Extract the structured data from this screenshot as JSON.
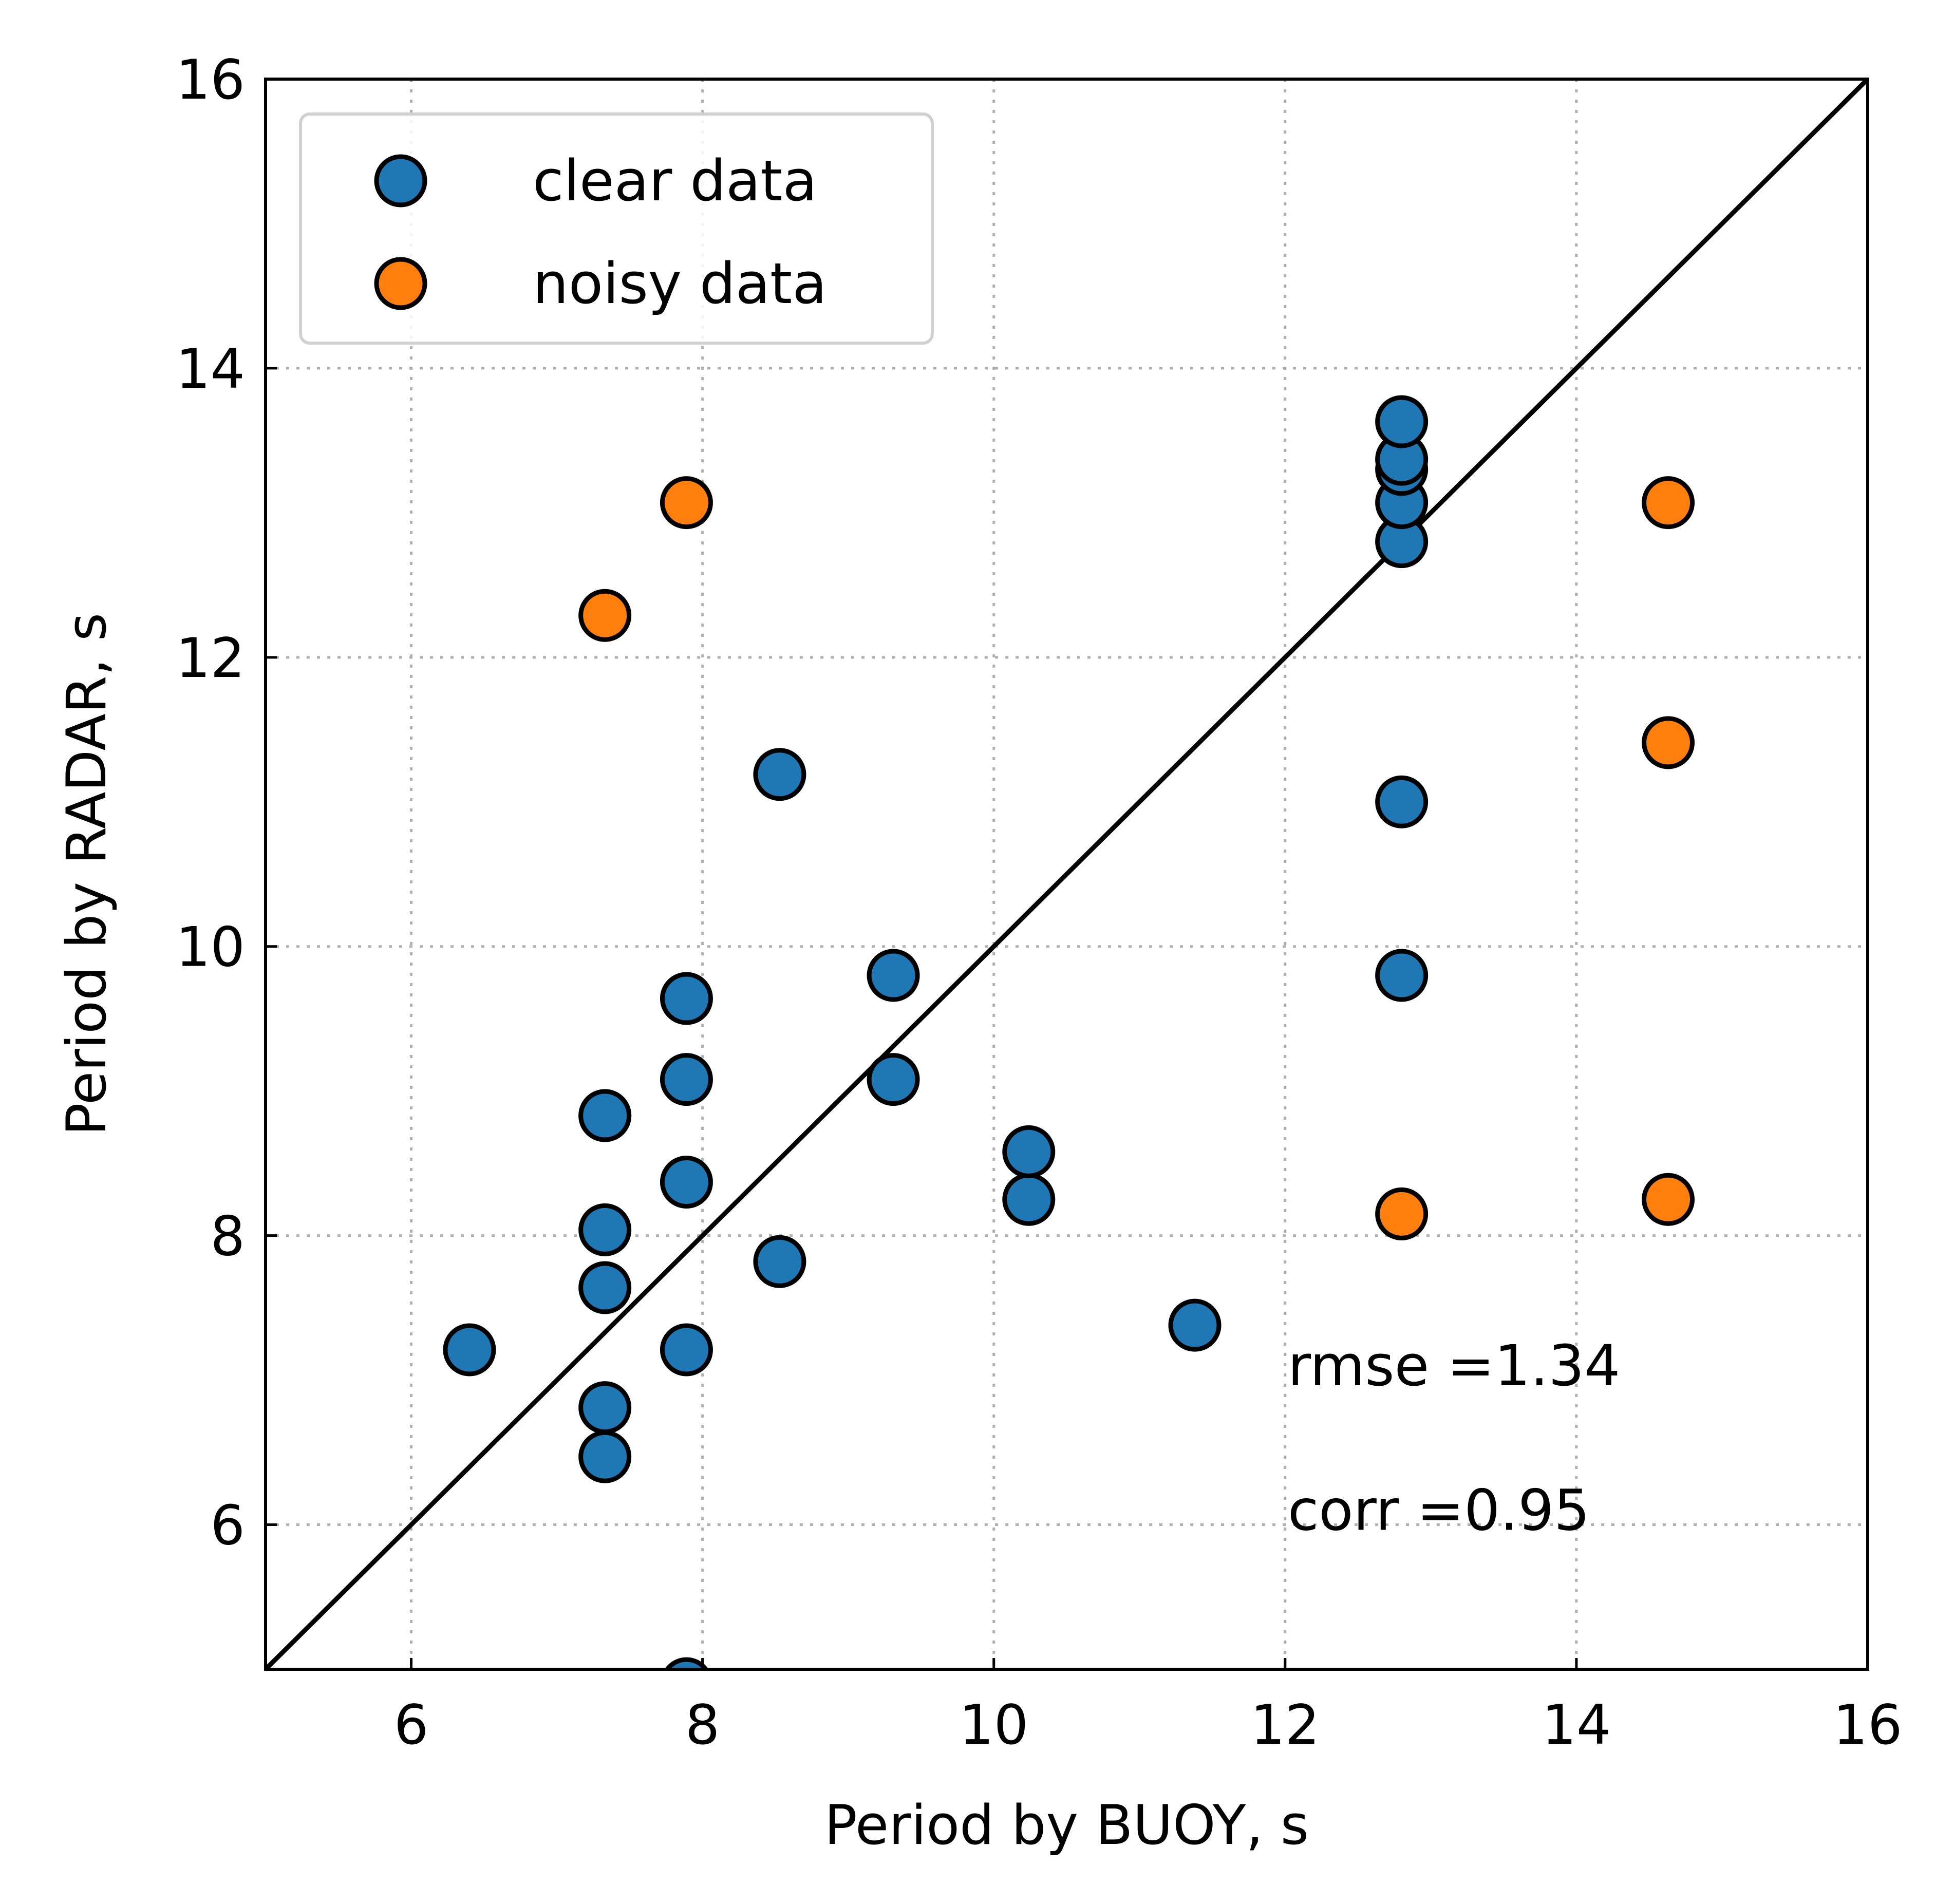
{
  "chart_data": {
    "type": "scatter",
    "xlabel": "Period by BUOY, s",
    "ylabel": "Period by RADAR, s",
    "xlim": [
      5,
      16
    ],
    "ylim": [
      5,
      16
    ],
    "xticks": [
      6,
      8,
      10,
      12,
      14,
      16
    ],
    "yticks": [
      6,
      8,
      10,
      12,
      14,
      16
    ],
    "xtick_labels": [
      "6",
      "8",
      "10",
      "12",
      "14",
      "16"
    ],
    "ytick_labels": [
      "6",
      "8",
      "10",
      "12",
      "14",
      "16"
    ],
    "grid": true,
    "legend_position": "top-left",
    "reference_line": {
      "from": [
        5,
        5
      ],
      "to": [
        16,
        16
      ],
      "color": "#000000"
    },
    "series": [
      {
        "name": "clear data",
        "color": "#1f77b4",
        "x": [
          6.4,
          7.33,
          7.33,
          7.33,
          7.33,
          7.33,
          7.33,
          7.89,
          7.89,
          7.89,
          7.89,
          7.89,
          8.53,
          8.53,
          9.31,
          9.31,
          10.24,
          10.24,
          11.38,
          12.8,
          12.8,
          12.8,
          12.8,
          12.8,
          12.8,
          12.8
        ],
        "y": [
          7.21,
          6.47,
          6.81,
          7.64,
          8.04,
          8.83,
          8.83,
          7.21,
          8.37,
          9.08,
          9.64,
          4.9,
          7.82,
          11.19,
          9.08,
          9.8,
          8.25,
          8.58,
          7.38,
          9.8,
          11.0,
          12.8,
          13.07,
          13.3,
          13.37,
          13.63
        ],
        "y_comment_note": ""
      },
      {
        "name": "noisy data",
        "color": "#ff7f0e",
        "x": [
          7.33,
          7.89,
          12.8,
          14.63,
          14.63,
          14.63
        ],
        "y": [
          12.29,
          13.07,
          8.15,
          8.25,
          11.41,
          13.07
        ]
      }
    ],
    "annotations": [
      {
        "text": "rmse =1.34",
        "x": 12.0,
        "y": 7.0
      },
      {
        "text": "corr =0.95",
        "x": 12.0,
        "y": 6.0
      }
    ]
  },
  "colors": {
    "marker_edge": "#000000",
    "grid": "#b0b0b0",
    "legend_border": "#d0d0d0"
  }
}
